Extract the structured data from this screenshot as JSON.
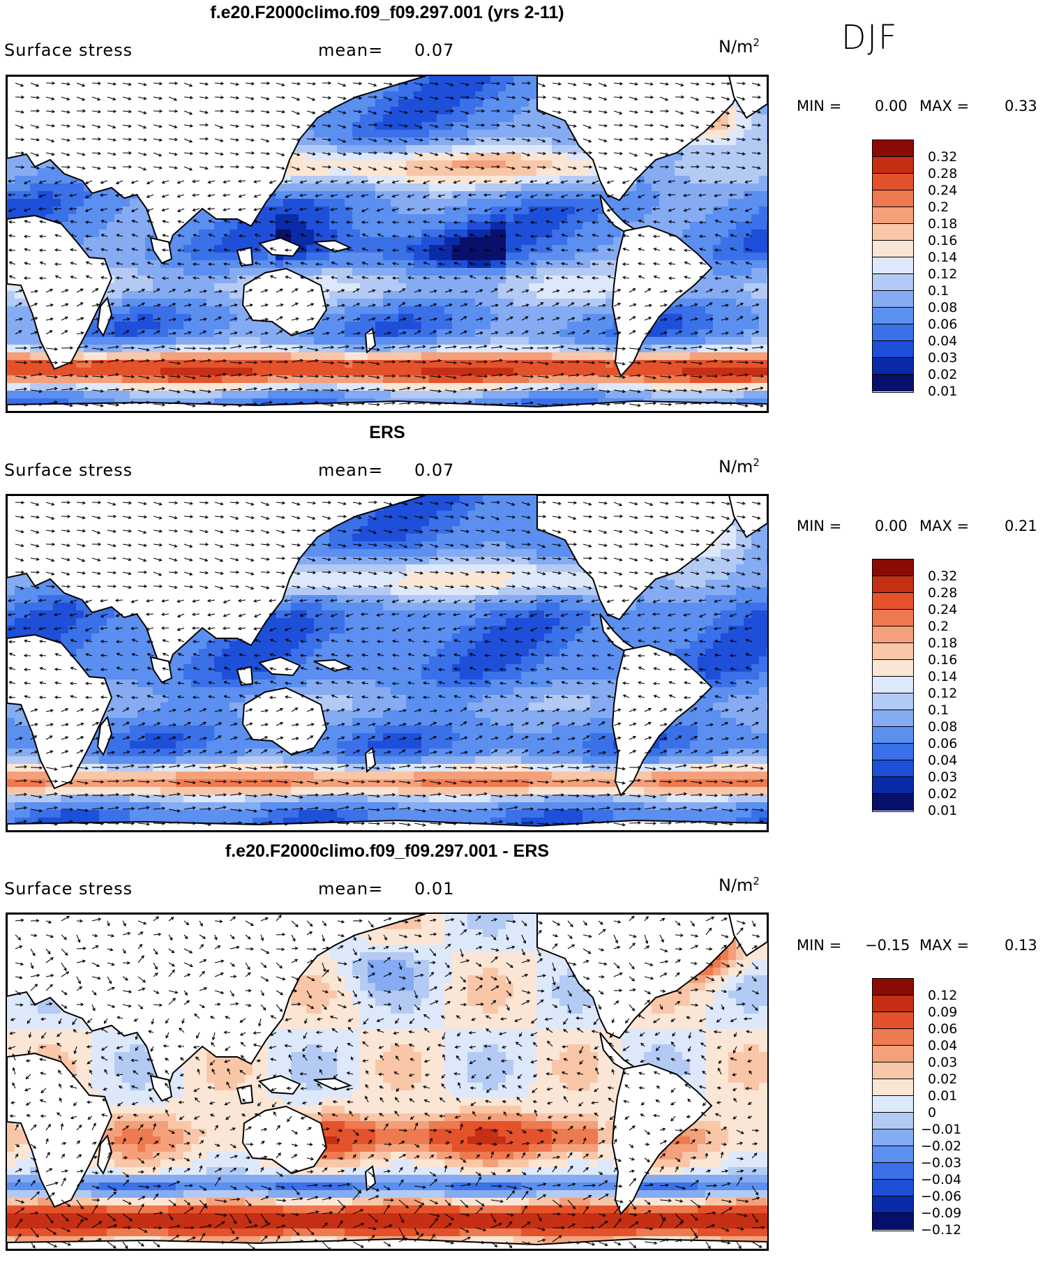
{
  "season": "DJF",
  "colors": {
    "rdbu": [
      "#08106b",
      "#0a2ba8",
      "#1e4fd8",
      "#3a70e8",
      "#5b8ff0",
      "#85abf2",
      "#b3caf5",
      "#dde8fb",
      "#fbe6d6",
      "#f9c7a8",
      "#f4a07a",
      "#ee7a4f",
      "#e4522b",
      "#c52f14",
      "#8a0b05"
    ],
    "land": "#ffffff",
    "coast": "#000000"
  },
  "panels": [
    {
      "title": "f.e20.F2000climo.f09_f09.297.001 (yrs 2-11)",
      "variable": "Surface stress",
      "mean_label": "mean=",
      "mean_value": "0.07",
      "units": "N/m",
      "units_exp": "2",
      "min_label": "MIN =",
      "min_value": "0.00",
      "max_label": "MAX =",
      "max_value": "0.33",
      "levels": [
        "0.32",
        "0.28",
        "0.24",
        "0.2",
        "0.18",
        "0.16",
        "0.14",
        "0.12",
        "0.1",
        "0.08",
        "0.06",
        "0.04",
        "0.03",
        "0.02",
        "0.01"
      ],
      "field": "model"
    },
    {
      "title": "ERS",
      "variable": "Surface stress",
      "mean_label": "mean=",
      "mean_value": "0.07",
      "units": "N/m",
      "units_exp": "2",
      "min_label": "MIN =",
      "min_value": "0.00",
      "max_label": "MAX =",
      "max_value": "0.21",
      "levels": [
        "0.32",
        "0.28",
        "0.24",
        "0.2",
        "0.18",
        "0.16",
        "0.14",
        "0.12",
        "0.1",
        "0.08",
        "0.06",
        "0.04",
        "0.03",
        "0.02",
        "0.01"
      ],
      "field": "obs"
    },
    {
      "title": "f.e20.F2000climo.f09_f09.297.001 - ERS",
      "variable": "Surface stress",
      "mean_label": "mean=",
      "mean_value": "0.01",
      "units": "N/m",
      "units_exp": "2",
      "min_label": "MIN =",
      "min_value": "−0.15",
      "max_label": "MAX =",
      "max_value": "0.13",
      "levels": [
        "0.12",
        "0.09",
        "0.06",
        "0.04",
        "0.03",
        "0.02",
        "0.01",
        "0",
        "−0.01",
        "−0.02",
        "−0.03",
        "−0.04",
        "−0.06",
        "−0.09",
        "−0.12"
      ],
      "field": "diff"
    }
  ]
}
